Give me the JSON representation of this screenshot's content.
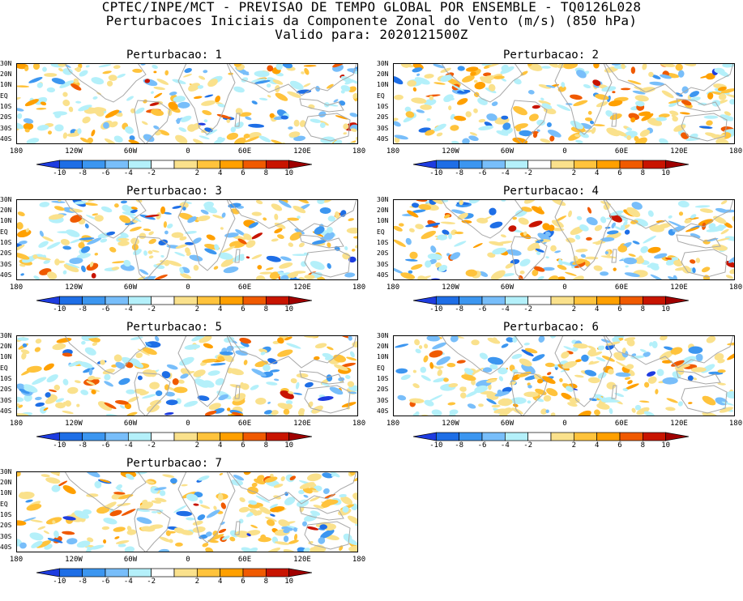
{
  "header": {
    "line1": "CPTEC/INPE/MCT - PREVISAO DE TEMPO GLOBAL POR ENSEMBLE - TQ0126L028",
    "line2": "Perturbacoes Iniciais da Componente Zonal do Vento (m/s) (850 hPa)",
    "line3": "Valido para: 2020121500Z"
  },
  "panels": [
    {
      "title": "Perturbacao: 1"
    },
    {
      "title": "Perturbacao: 2"
    },
    {
      "title": "Perturbacao: 3"
    },
    {
      "title": "Perturbacao: 4"
    },
    {
      "title": "Perturbacao: 5"
    },
    {
      "title": "Perturbacao: 6"
    },
    {
      "title": "Perturbacao: 7"
    }
  ],
  "axis": {
    "lat_labels": [
      "30N",
      "20N",
      "10N",
      "EQ",
      "10S",
      "20S",
      "30S",
      "40S"
    ],
    "lon_labels": [
      "180",
      "120W",
      "60W",
      "0",
      "60E",
      "120E",
      "180"
    ]
  },
  "colorbar": {
    "labels": [
      "-10",
      "-8",
      "-6",
      "-4",
      "-2",
      "2",
      "4",
      "6",
      "8",
      "10"
    ],
    "colors": [
      "#1e3ce0",
      "#1e6ee6",
      "#3c96f0",
      "#78befa",
      "#b4f0fa",
      "#ffffff",
      "#fae18c",
      "#ffc33c",
      "#ffa000",
      "#f05a00",
      "#c81400",
      "#a00000"
    ]
  }
}
